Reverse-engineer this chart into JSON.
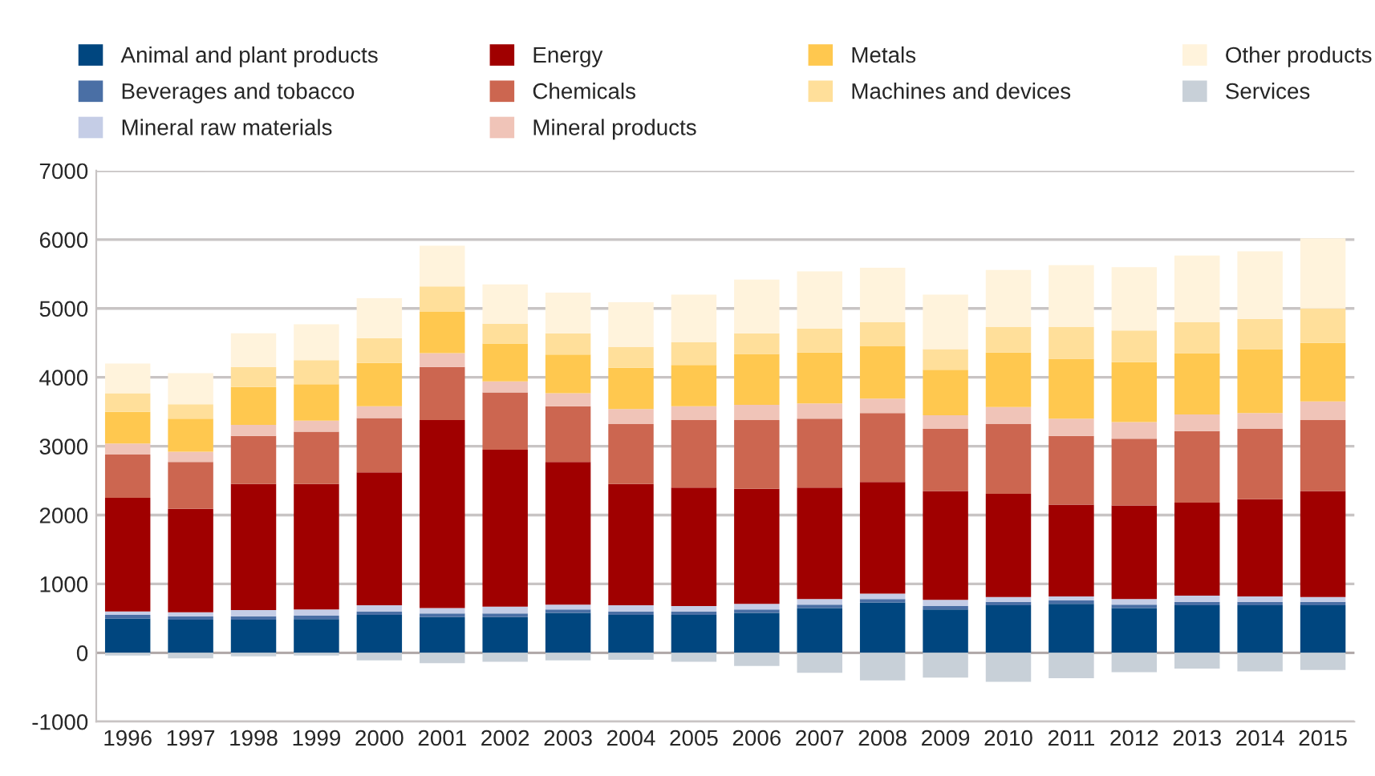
{
  "chart_data": {
    "type": "bar",
    "stacked": true,
    "categories": [
      "1996",
      "1997",
      "1998",
      "1999",
      "2000",
      "2001",
      "2002",
      "2003",
      "2004",
      "2005",
      "2006",
      "2007",
      "2008",
      "2009",
      "2010",
      "2011",
      "2012",
      "2013",
      "2014",
      "2015"
    ],
    "series": [
      {
        "name": "Animal and plant products",
        "color": "#00467f",
        "values": [
          500,
          480,
          480,
          490,
          550,
          520,
          520,
          580,
          550,
          550,
          580,
          650,
          730,
          630,
          690,
          710,
          650,
          690,
          690,
          690
        ]
      },
      {
        "name": "Beverages and tobacco",
        "color": "#4a6fa5",
        "values": [
          50,
          50,
          50,
          50,
          50,
          50,
          50,
          50,
          50,
          50,
          50,
          50,
          50,
          50,
          50,
          50,
          50,
          50,
          50,
          50
        ]
      },
      {
        "name": "Mineral raw materials",
        "color": "#c5cde6",
        "values": [
          50,
          60,
          90,
          90,
          90,
          80,
          100,
          70,
          90,
          80,
          80,
          80,
          80,
          90,
          70,
          60,
          80,
          90,
          80,
          70
        ]
      },
      {
        "name": "Energy",
        "color": "#a00000",
        "values": [
          1650,
          1500,
          1830,
          1820,
          1930,
          2730,
          2280,
          2070,
          1760,
          1720,
          1670,
          1620,
          1620,
          1580,
          1500,
          1330,
          1360,
          1350,
          1410,
          1540
        ]
      },
      {
        "name": "Chemicals",
        "color": "#cc6650",
        "values": [
          630,
          680,
          700,
          760,
          790,
          770,
          830,
          810,
          870,
          980,
          1000,
          1000,
          1000,
          900,
          1010,
          1000,
          970,
          1040,
          1020,
          1030
        ]
      },
      {
        "name": "Mineral products",
        "color": "#f0c4b8",
        "values": [
          160,
          150,
          160,
          160,
          170,
          200,
          160,
          190,
          220,
          200,
          220,
          220,
          210,
          200,
          250,
          250,
          240,
          240,
          230,
          270
        ]
      },
      {
        "name": "Metals",
        "color": "#ffc84f",
        "values": [
          460,
          480,
          550,
          530,
          630,
          600,
          550,
          560,
          600,
          600,
          740,
          740,
          760,
          660,
          790,
          870,
          870,
          890,
          930,
          850
        ]
      },
      {
        "name": "Machines and devices",
        "color": "#ffdf9a",
        "values": [
          270,
          210,
          290,
          350,
          360,
          370,
          290,
          310,
          300,
          330,
          300,
          350,
          350,
          300,
          370,
          460,
          460,
          450,
          440,
          500
        ]
      },
      {
        "name": "Other products",
        "color": "#fff3dc",
        "values": [
          430,
          450,
          490,
          520,
          580,
          590,
          570,
          590,
          650,
          690,
          780,
          830,
          790,
          790,
          830,
          900,
          920,
          970,
          980,
          1020
        ]
      },
      {
        "name": "Services",
        "color": "#c8d0d8",
        "values": [
          -40,
          -80,
          -50,
          -40,
          -110,
          -150,
          -130,
          -110,
          -100,
          -130,
          -190,
          -290,
          -400,
          -360,
          -420,
          -370,
          -280,
          -230,
          -270,
          -250
        ]
      }
    ],
    "ylim": [
      -1000,
      7000
    ],
    "yticks": [
      -1000,
      0,
      1000,
      2000,
      3000,
      4000,
      5000,
      6000,
      7000
    ],
    "grid": "y",
    "legend": "top"
  }
}
